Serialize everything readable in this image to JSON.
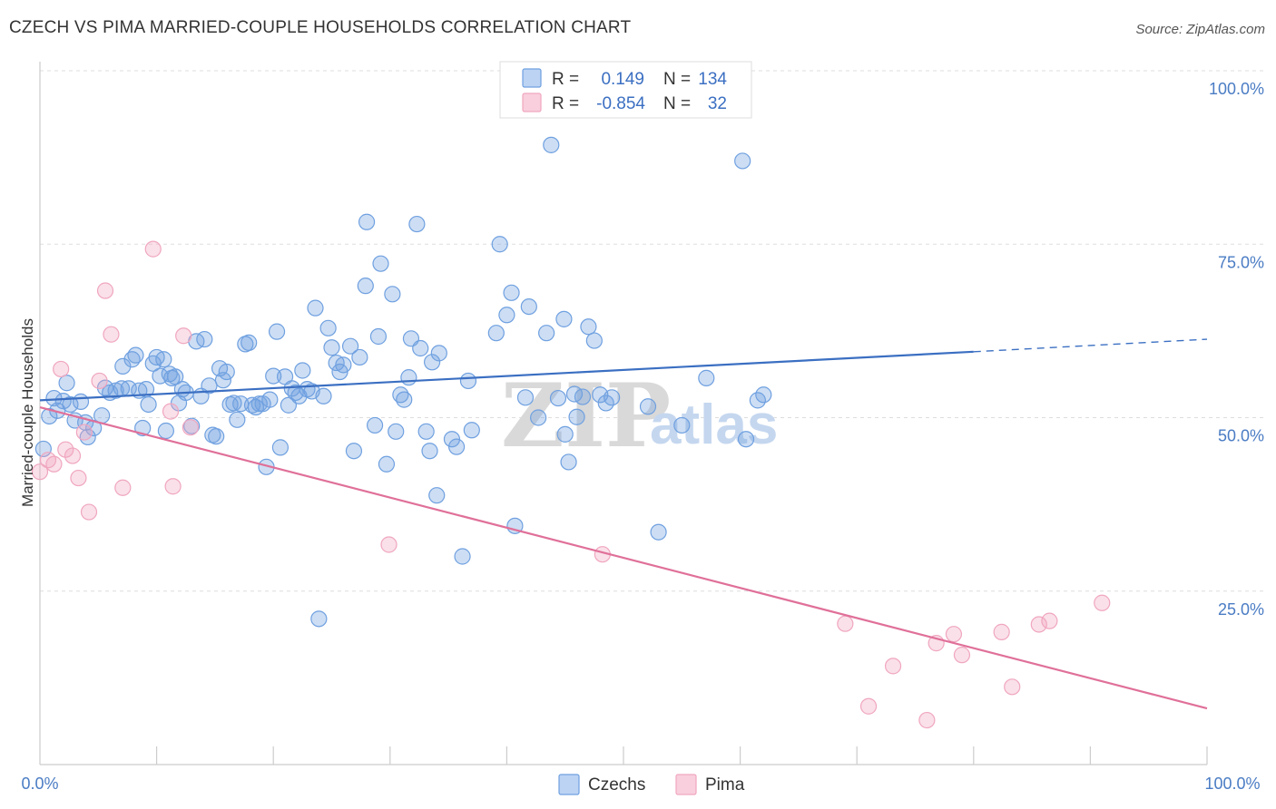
{
  "title": "CZECH VS PIMA MARRIED-COUPLE HOUSEHOLDS CORRELATION CHART",
  "source": "Source: ZipAtlas.com",
  "watermark": {
    "zip": "ZIP",
    "atlas": "atlas"
  },
  "colors": {
    "czechs": "#6fa0e0",
    "czechs_line": "#3b6fc2",
    "pima": "#f0a6bf",
    "pima_line": "#e07099",
    "grid": "#dddddd",
    "tick_text": "#4a7cc4"
  },
  "legend": {
    "rows": [
      {
        "r_label": "R =",
        "r_value": "0.149",
        "n_label": "N =",
        "n_value": "134"
      },
      {
        "r_label": "R =",
        "r_value": "-0.854",
        "n_label": "N =",
        "n_value": "32"
      }
    ]
  },
  "bottom_legend": {
    "czechs": "Czechs",
    "pima": "Pima"
  },
  "chart_data": {
    "type": "scatter",
    "title": "CZECH VS PIMA MARRIED-COUPLE HOUSEHOLDS CORRELATION CHART",
    "xlabel": "",
    "ylabel": "Married-couple Households",
    "xlim": [
      0,
      100
    ],
    "ylim": [
      0,
      100
    ],
    "x_tick_labels": [
      "0.0%",
      "100.0%"
    ],
    "y_tick_labels": [
      "100.0%",
      "75.0%",
      "50.0%",
      "25.0%"
    ],
    "y_ticks": [
      100,
      75,
      50,
      25
    ],
    "grid": true,
    "legend_position": "top-center",
    "series": [
      {
        "name": "Czechs",
        "r": 0.149,
        "n": 134,
        "trend": {
          "x0": 0,
          "y0": 52.5,
          "x1": 80,
          "y1": 59.5,
          "dashed_to_x": 100,
          "dashed_to_y": 61.3
        },
        "points": [
          [
            0.3,
            45.5
          ],
          [
            0.8,
            50.2
          ],
          [
            1.2,
            52.8
          ],
          [
            1.5,
            51.0
          ],
          [
            2.0,
            52.4
          ],
          [
            2.3,
            55.0
          ],
          [
            2.6,
            51.9
          ],
          [
            3.0,
            49.6
          ],
          [
            3.5,
            52.3
          ],
          [
            3.9,
            49.3
          ],
          [
            4.1,
            47.2
          ],
          [
            4.6,
            48.5
          ],
          [
            5.3,
            50.3
          ],
          [
            5.6,
            54.3
          ],
          [
            6.0,
            53.6
          ],
          [
            6.5,
            53.9
          ],
          [
            7.0,
            54.2
          ],
          [
            7.1,
            57.4
          ],
          [
            7.6,
            54.2
          ],
          [
            7.9,
            58.4
          ],
          [
            8.2,
            59.0
          ],
          [
            8.5,
            53.9
          ],
          [
            8.8,
            48.5
          ],
          [
            9.1,
            54.1
          ],
          [
            9.3,
            51.9
          ],
          [
            9.7,
            57.8
          ],
          [
            10.0,
            58.7
          ],
          [
            10.3,
            56.0
          ],
          [
            10.6,
            58.4
          ],
          [
            10.8,
            48.1
          ],
          [
            11.1,
            56.3
          ],
          [
            11.3,
            55.7
          ],
          [
            11.6,
            55.9
          ],
          [
            11.9,
            52.1
          ],
          [
            12.2,
            54.1
          ],
          [
            12.5,
            53.6
          ],
          [
            13.0,
            48.8
          ],
          [
            13.4,
            61.0
          ],
          [
            13.8,
            53.1
          ],
          [
            14.1,
            61.3
          ],
          [
            14.5,
            54.6
          ],
          [
            14.8,
            47.5
          ],
          [
            15.1,
            47.3
          ],
          [
            15.4,
            57.1
          ],
          [
            15.7,
            55.4
          ],
          [
            16.0,
            56.6
          ],
          [
            16.3,
            51.9
          ],
          [
            16.6,
            52.1
          ],
          [
            16.9,
            49.7
          ],
          [
            17.2,
            52.0
          ],
          [
            17.6,
            60.6
          ],
          [
            17.9,
            60.8
          ],
          [
            18.2,
            51.8
          ],
          [
            18.5,
            51.5
          ],
          [
            18.8,
            52.0
          ],
          [
            19.1,
            52.0
          ],
          [
            19.4,
            42.9
          ],
          [
            19.7,
            52.6
          ],
          [
            20.0,
            56.0
          ],
          [
            20.3,
            62.4
          ],
          [
            20.6,
            45.7
          ],
          [
            21.0,
            55.9
          ],
          [
            21.3,
            51.8
          ],
          [
            21.6,
            54.2
          ],
          [
            21.9,
            53.6
          ],
          [
            22.2,
            53.1
          ],
          [
            22.5,
            56.8
          ],
          [
            22.9,
            54.1
          ],
          [
            23.3,
            53.8
          ],
          [
            23.6,
            65.8
          ],
          [
            23.9,
            21.0
          ],
          [
            24.3,
            53.1
          ],
          [
            24.7,
            62.9
          ],
          [
            25.0,
            60.1
          ],
          [
            25.4,
            57.9
          ],
          [
            25.7,
            56.6
          ],
          [
            26.0,
            57.6
          ],
          [
            26.6,
            60.3
          ],
          [
            26.9,
            45.2
          ],
          [
            27.4,
            58.7
          ],
          [
            27.9,
            69.0
          ],
          [
            28.0,
            78.2
          ],
          [
            28.7,
            48.9
          ],
          [
            29.0,
            61.7
          ],
          [
            29.2,
            72.2
          ],
          [
            29.7,
            43.3
          ],
          [
            30.2,
            67.8
          ],
          [
            30.5,
            48.0
          ],
          [
            30.9,
            53.3
          ],
          [
            31.2,
            52.6
          ],
          [
            31.6,
            55.8
          ],
          [
            31.8,
            61.4
          ],
          [
            32.3,
            77.9
          ],
          [
            32.6,
            60.0
          ],
          [
            33.1,
            48.0
          ],
          [
            33.4,
            45.2
          ],
          [
            33.6,
            58.0
          ],
          [
            34.0,
            38.8
          ],
          [
            34.2,
            59.3
          ],
          [
            35.3,
            46.9
          ],
          [
            35.7,
            45.8
          ],
          [
            36.2,
            30.0
          ],
          [
            36.7,
            55.3
          ],
          [
            37.0,
            48.2
          ],
          [
            39.1,
            62.2
          ],
          [
            39.4,
            75.0
          ],
          [
            40.0,
            64.8
          ],
          [
            40.4,
            68.0
          ],
          [
            40.7,
            34.4
          ],
          [
            41.9,
            66.0
          ],
          [
            42.7,
            50.0
          ],
          [
            43.4,
            62.2
          ],
          [
            43.8,
            89.3
          ],
          [
            44.4,
            52.8
          ],
          [
            44.9,
            64.2
          ],
          [
            45.0,
            47.6
          ],
          [
            45.3,
            43.6
          ],
          [
            46.0,
            50.1
          ],
          [
            46.5,
            53.0
          ],
          [
            47.0,
            63.1
          ],
          [
            47.5,
            61.1
          ],
          [
            48.0,
            53.3
          ],
          [
            48.5,
            52.1
          ],
          [
            49.0,
            52.9
          ],
          [
            52.1,
            51.6
          ],
          [
            53.0,
            33.5
          ],
          [
            55.0,
            48.9
          ],
          [
            57.1,
            55.7
          ],
          [
            60.2,
            87.0
          ],
          [
            60.5,
            46.9
          ],
          [
            62.0,
            53.3
          ],
          [
            61.5,
            52.5
          ],
          [
            45.8,
            53.4
          ],
          [
            41.6,
            52.9
          ]
        ]
      },
      {
        "name": "Pima",
        "r": -0.854,
        "n": 32,
        "trend": {
          "x0": 0,
          "y0": 51.5,
          "x1": 100,
          "y1": 8.1
        },
        "points": [
          [
            0.0,
            42.2
          ],
          [
            0.7,
            43.9
          ],
          [
            1.2,
            43.3
          ],
          [
            1.8,
            57.0
          ],
          [
            2.2,
            45.4
          ],
          [
            2.8,
            44.5
          ],
          [
            3.3,
            41.3
          ],
          [
            3.8,
            47.9
          ],
          [
            4.2,
            36.4
          ],
          [
            5.1,
            55.3
          ],
          [
            5.6,
            68.3
          ],
          [
            6.1,
            62.0
          ],
          [
            7.1,
            39.9
          ],
          [
            9.7,
            74.3
          ],
          [
            11.2,
            50.9
          ],
          [
            11.4,
            40.1
          ],
          [
            12.3,
            61.8
          ],
          [
            12.9,
            48.6
          ],
          [
            29.9,
            31.7
          ],
          [
            48.2,
            30.3
          ],
          [
            69.0,
            20.3
          ],
          [
            71.0,
            8.4
          ],
          [
            73.1,
            14.2
          ],
          [
            76.0,
            6.4
          ],
          [
            76.8,
            17.5
          ],
          [
            78.3,
            18.8
          ],
          [
            79.0,
            15.8
          ],
          [
            82.4,
            19.1
          ],
          [
            83.3,
            11.2
          ],
          [
            85.6,
            20.2
          ],
          [
            86.5,
            20.7
          ],
          [
            91.0,
            23.3
          ]
        ]
      }
    ]
  }
}
